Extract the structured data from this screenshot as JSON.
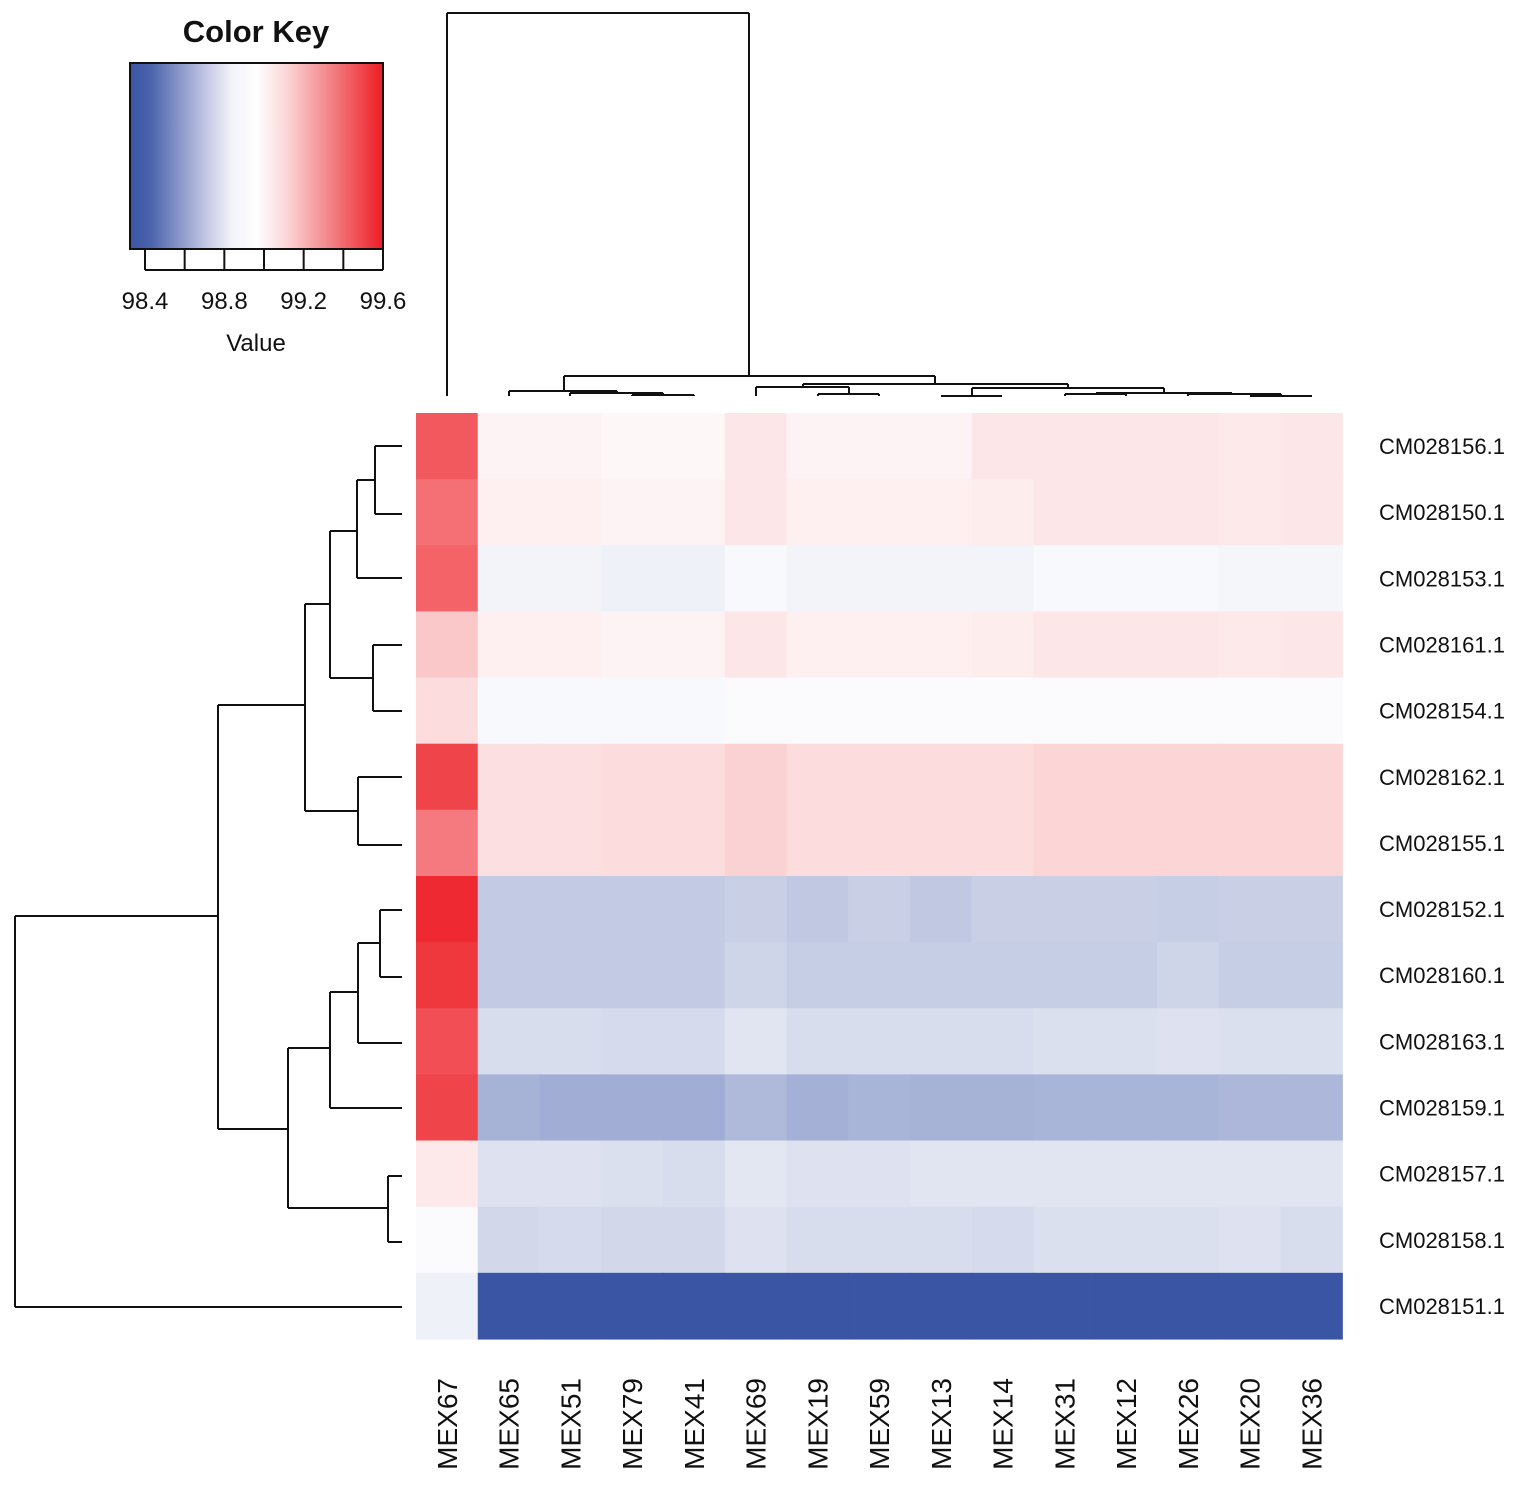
{
  "chart_data": {
    "type": "heatmap",
    "title": "",
    "color_key": {
      "title": "Color Key",
      "xlabel": "Value",
      "ticks": [
        "98.4",
        "98.8",
        "99.2",
        "99.6"
      ],
      "range": [
        98.25,
        99.6
      ],
      "colors": {
        "low": "#3b55a5",
        "mid": "#ffffff",
        "high": "#ed1c24"
      }
    },
    "columns": [
      "MEX67",
      "MEX65",
      "MEX51",
      "MEX79",
      "MEX41",
      "MEX69",
      "MEX19",
      "MEX59",
      "MEX13",
      "MEX14",
      "MEX31",
      "MEX12",
      "MEX26",
      "MEX20",
      "MEX36"
    ],
    "rows": [
      "CM028156.1",
      "CM028150.1",
      "CM028153.1",
      "CM028161.1",
      "CM028154.1",
      "CM028162.1",
      "CM028155.1",
      "CM028152.1",
      "CM028160.1",
      "CM028163.1",
      "CM028159.1",
      "CM028157.1",
      "CM028158.1",
      "CM028151.1"
    ],
    "values": [
      [
        99.42,
        98.96,
        98.96,
        98.95,
        98.95,
        99.0,
        98.96,
        98.96,
        98.96,
        99.0,
        99.0,
        99.0,
        99.0,
        98.99,
        99.0
      ],
      [
        99.35,
        98.97,
        98.97,
        98.96,
        98.96,
        99.0,
        98.97,
        98.97,
        98.97,
        98.98,
        99.0,
        99.0,
        99.0,
        98.99,
        99.0
      ],
      [
        99.39,
        98.88,
        98.88,
        98.87,
        98.87,
        98.9,
        98.88,
        98.88,
        98.88,
        98.88,
        98.9,
        98.9,
        98.9,
        98.89,
        98.89
      ],
      [
        99.09,
        98.97,
        98.97,
        98.96,
        98.96,
        99.0,
        98.97,
        98.97,
        98.97,
        98.98,
        99.0,
        99.0,
        99.0,
        98.99,
        99.0
      ],
      [
        99.03,
        98.9,
        98.9,
        98.9,
        98.9,
        98.91,
        98.91,
        98.91,
        98.91,
        98.91,
        98.91,
        98.91,
        98.91,
        98.91,
        98.91
      ],
      [
        99.48,
        99.02,
        99.02,
        99.03,
        99.03,
        99.06,
        99.03,
        99.03,
        99.03,
        99.03,
        99.05,
        99.05,
        99.05,
        99.05,
        99.05
      ],
      [
        99.32,
        99.02,
        99.02,
        99.03,
        99.03,
        99.06,
        99.03,
        99.03,
        99.03,
        99.03,
        99.05,
        99.05,
        99.05,
        99.05,
        99.05
      ],
      [
        99.56,
        98.72,
        98.72,
        98.72,
        98.72,
        98.74,
        98.71,
        98.74,
        98.71,
        98.74,
        98.74,
        98.74,
        98.73,
        98.74,
        98.74
      ],
      [
        99.52,
        98.72,
        98.72,
        98.72,
        98.72,
        98.76,
        98.73,
        98.73,
        98.73,
        98.73,
        98.73,
        98.73,
        98.76,
        98.73,
        98.73
      ],
      [
        99.45,
        98.79,
        98.79,
        98.78,
        98.78,
        98.82,
        98.79,
        98.79,
        98.79,
        98.79,
        98.8,
        98.8,
        98.81,
        98.8,
        98.8
      ],
      [
        99.48,
        98.62,
        98.6,
        98.6,
        98.6,
        98.65,
        98.61,
        98.63,
        98.62,
        98.62,
        98.63,
        98.63,
        98.63,
        98.64,
        98.64
      ],
      [
        98.99,
        98.81,
        98.81,
        98.8,
        98.79,
        98.83,
        98.81,
        98.81,
        98.82,
        98.82,
        98.82,
        98.82,
        98.82,
        98.82,
        98.82
      ],
      [
        98.91,
        98.77,
        98.78,
        98.77,
        98.77,
        98.81,
        98.79,
        98.79,
        98.79,
        98.78,
        98.8,
        98.8,
        98.8,
        98.81,
        98.79
      ],
      [
        98.87,
        98.25,
        98.25,
        98.25,
        98.25,
        98.25,
        98.25,
        98.25,
        98.25,
        98.25,
        98.25,
        98.25,
        98.25,
        98.25,
        98.25
      ]
    ]
  }
}
